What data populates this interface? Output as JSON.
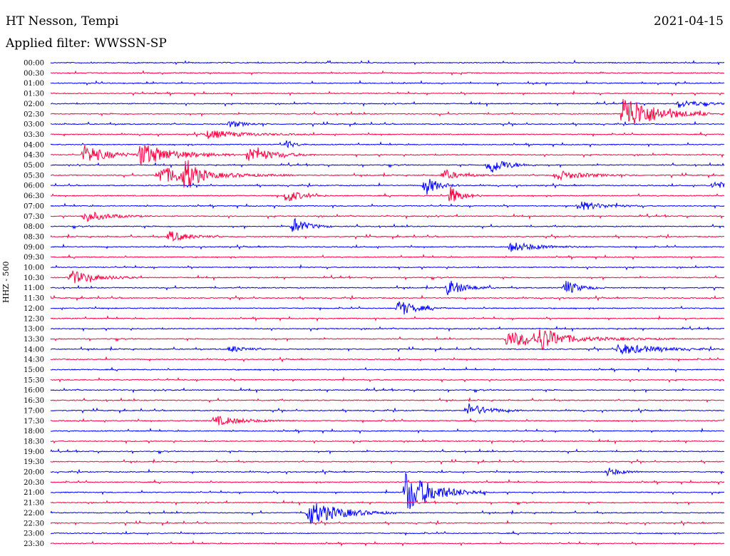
{
  "header": {
    "station": "HT Nesson, Tempi",
    "date": "2021-04-15",
    "filter": "Applied filter: WWSSN-SP"
  },
  "chart_data": {
    "type": "line",
    "title": "HT Nesson, Tempi",
    "subtitle": "Applied filter: WWSSN-SP",
    "ylabel": "HHZ - 500",
    "xlabel": "",
    "row_times": [
      "00:00",
      "00:30",
      "01:00",
      "01:30",
      "02:00",
      "02:30",
      "03:00",
      "03:30",
      "04:00",
      "04:30",
      "05:00",
      "05:30",
      "06:00",
      "06:30",
      "07:00",
      "07:30",
      "08:00",
      "08:30",
      "09:00",
      "09:30",
      "10:00",
      "10:30",
      "11:00",
      "11:30",
      "12:00",
      "12:30",
      "13:00",
      "13:30",
      "14:00",
      "14:30",
      "15:00",
      "15:30",
      "16:00",
      "16:30",
      "17:00",
      "17:30",
      "18:00",
      "18:30",
      "19:00",
      "19:30",
      "20:00",
      "20:30",
      "21:00",
      "21:30",
      "22:00",
      "22:30",
      "23:00",
      "23:30"
    ],
    "trace_colors": [
      "#0000ff",
      "#ff0040"
    ],
    "row_minutes": 30,
    "grid": false,
    "events": [
      {
        "row": 5,
        "minute": 25.5,
        "amp": 28,
        "dur": 1.3
      },
      {
        "row": 4,
        "minute": 28.0,
        "amp": 5,
        "dur": 1.0
      },
      {
        "row": 6,
        "minute": 8.0,
        "amp": 5,
        "dur": 0.6
      },
      {
        "row": 7,
        "minute": 7.0,
        "amp": 6,
        "dur": 1.5
      },
      {
        "row": 8,
        "minute": 10.5,
        "amp": 7,
        "dur": 0.3
      },
      {
        "row": 9,
        "minute": 1.5,
        "amp": 13,
        "dur": 1.0
      },
      {
        "row": 9,
        "minute": 4.0,
        "amp": 16,
        "dur": 1.4
      },
      {
        "row": 9,
        "minute": 8.8,
        "amp": 12,
        "dur": 1.0
      },
      {
        "row": 10,
        "minute": 19.5,
        "amp": 14,
        "dur": 0.7
      },
      {
        "row": 11,
        "minute": 4.8,
        "amp": 12,
        "dur": 2.0
      },
      {
        "row": 11,
        "minute": 6.0,
        "amp": 22,
        "dur": 0.4
      },
      {
        "row": 11,
        "minute": 17.5,
        "amp": 7,
        "dur": 0.7
      },
      {
        "row": 11,
        "minute": 22.5,
        "amp": 7,
        "dur": 1.2
      },
      {
        "row": 12,
        "minute": 16.7,
        "amp": 14,
        "dur": 0.5
      },
      {
        "row": 12,
        "minute": 29.5,
        "amp": 6,
        "dur": 0.8
      },
      {
        "row": 13,
        "minute": 10.5,
        "amp": 10,
        "dur": 0.6
      },
      {
        "row": 13,
        "minute": 17.8,
        "amp": 13,
        "dur": 0.5
      },
      {
        "row": 14,
        "minute": 23.5,
        "amp": 7,
        "dur": 1.0
      },
      {
        "row": 15,
        "minute": 1.5,
        "amp": 8,
        "dur": 1.0
      },
      {
        "row": 16,
        "minute": 10.8,
        "amp": 12,
        "dur": 0.6
      },
      {
        "row": 17,
        "minute": 5.3,
        "amp": 8,
        "dur": 0.8
      },
      {
        "row": 18,
        "minute": 20.5,
        "amp": 7,
        "dur": 1.2
      },
      {
        "row": 21,
        "minute": 0.9,
        "amp": 10,
        "dur": 1.0
      },
      {
        "row": 22,
        "minute": 17.7,
        "amp": 12,
        "dur": 0.7
      },
      {
        "row": 22,
        "minute": 22.9,
        "amp": 11,
        "dur": 0.6
      },
      {
        "row": 24,
        "minute": 15.5,
        "amp": 12,
        "dur": 0.7
      },
      {
        "row": 27,
        "minute": 20.3,
        "amp": 10,
        "dur": 2.5
      },
      {
        "row": 27,
        "minute": 21.8,
        "amp": 14,
        "dur": 0.6
      },
      {
        "row": 28,
        "minute": 25.3,
        "amp": 8,
        "dur": 1.5
      },
      {
        "row": 28,
        "minute": 8.0,
        "amp": 5,
        "dur": 0.6
      },
      {
        "row": 34,
        "minute": 18.6,
        "amp": 10,
        "dur": 0.8
      },
      {
        "row": 35,
        "minute": 7.3,
        "amp": 7,
        "dur": 1.2
      },
      {
        "row": 40,
        "minute": 24.8,
        "amp": 6,
        "dur": 0.6
      },
      {
        "row": 42,
        "minute": 15.8,
        "amp": 30,
        "dur": 1.2
      },
      {
        "row": 44,
        "minute": 11.5,
        "amp": 18,
        "dur": 1.3
      }
    ]
  }
}
